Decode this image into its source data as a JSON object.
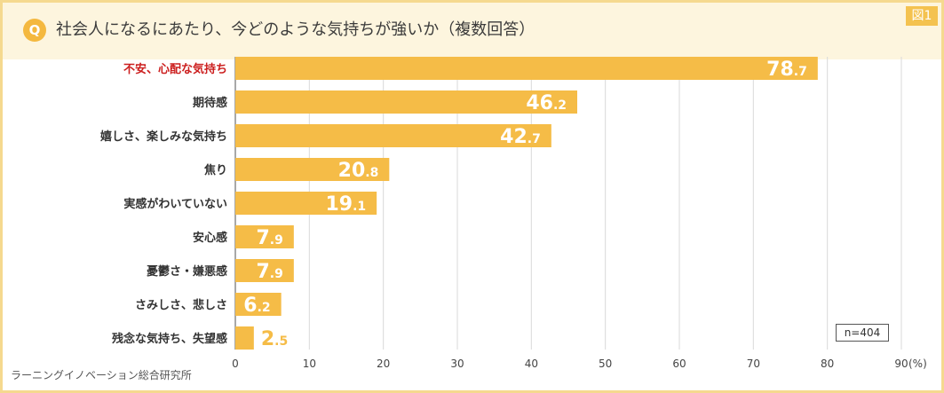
{
  "figure_label": "図1",
  "question_badge": "Q",
  "question": "社会人になるにあたり、今どのような気持ちが強いか（複数回答）",
  "source": "ラーニングイノベーション総合研究所",
  "sample_size": "n=404",
  "colors": {
    "bar": "#f5bc47",
    "highlight_label": "#cc1f1f",
    "label": "#333333",
    "value_inside": "#ffffff",
    "value_outside": "#f5bc47",
    "grid": "#d9d9d9"
  },
  "chart_data": {
    "type": "bar",
    "orientation": "horizontal",
    "categories": [
      "不安、心配な気持ち",
      "期待感",
      "嬉しさ、楽しみな気持ち",
      "焦り",
      "実感がわいていない",
      "安心感",
      "憂鬱さ・嫌悪感",
      "さみしさ、悲しさ",
      "残念な気持ち、失望感"
    ],
    "values": [
      78.7,
      46.2,
      42.7,
      20.8,
      19.1,
      7.9,
      7.9,
      6.2,
      2.5
    ],
    "value_labels": [
      {
        "int": "78",
        "dec": ".7"
      },
      {
        "int": "46",
        "dec": ".2"
      },
      {
        "int": "42",
        "dec": ".7"
      },
      {
        "int": "20",
        "dec": ".8"
      },
      {
        "int": "19",
        "dec": ".1"
      },
      {
        "int": "7",
        "dec": ".9"
      },
      {
        "int": "7",
        "dec": ".9"
      },
      {
        "int": "6",
        "dec": ".2"
      },
      {
        "int": "2",
        "dec": ".5"
      }
    ],
    "highlight_index": 0,
    "xlim": [
      0,
      90
    ],
    "xticks": [
      "0",
      "10",
      "20",
      "30",
      "40",
      "50",
      "60",
      "70",
      "80",
      "90"
    ],
    "unit": "(%)"
  }
}
